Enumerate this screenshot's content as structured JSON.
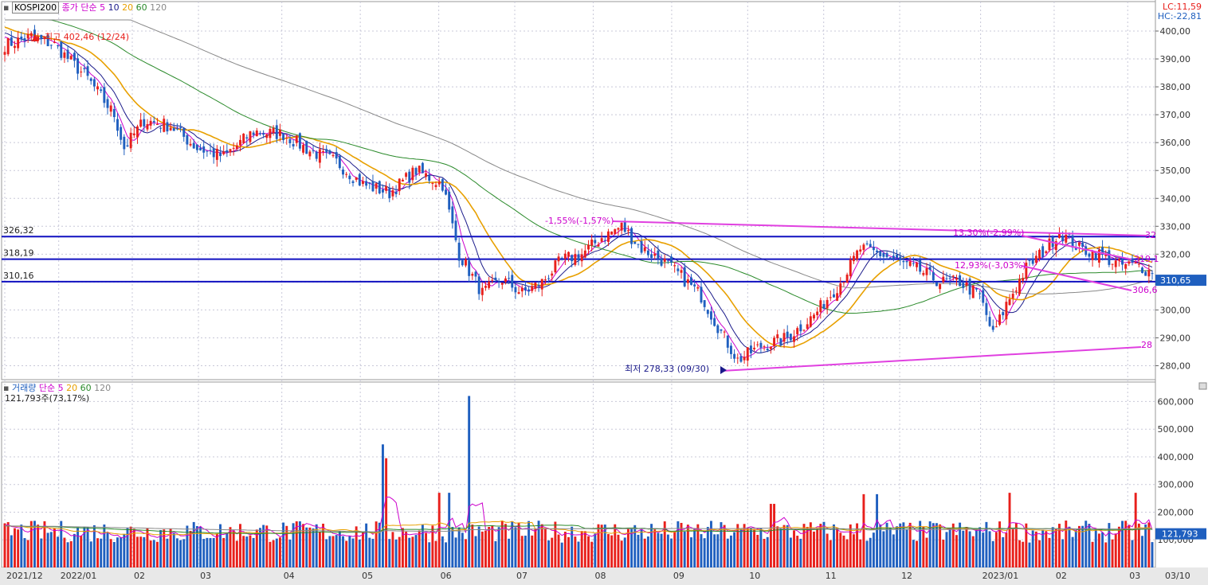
{
  "header": {
    "symbol": "KOSPI200",
    "indicator_label": "종가 단순",
    "ma_periods": [
      "5",
      "10",
      "20",
      "60",
      "120"
    ],
    "lc": "LC:11,59",
    "hc": "HC:-22,81"
  },
  "volume_header": {
    "label": "거래량",
    "indicator_label": "단순",
    "ma_periods": [
      "5",
      "20",
      "60",
      "120"
    ],
    "value_text": "121,793주(73,17%)"
  },
  "colors": {
    "up": "#e8201c",
    "down": "#1f5fbf",
    "ma5": "#cc00cc",
    "ma10": "#1a1a8a",
    "ma20": "#e8a000",
    "ma60": "#2a8a2a",
    "ma120": "#888888",
    "hline": "#1010c0",
    "trend": "#e040e0",
    "grid": "#c8c8d8"
  },
  "chart_data": {
    "type": "candlestick",
    "price_axis": {
      "min": 275,
      "max": 405,
      "ticks": [
        "400,00",
        "390,00",
        "380,00",
        "370,00",
        "360,00",
        "350,00",
        "340,00",
        "330,00",
        "320,00",
        "310,00",
        "300,00",
        "290,00",
        "280,00"
      ]
    },
    "volume_axis": {
      "min": 0,
      "max": 650000,
      "ticks": [
        "600,000",
        "500,000",
        "400,000",
        "300,000",
        "200,000",
        "100,000"
      ]
    },
    "x_labels": [
      "2021/12",
      "2022/01",
      "02",
      "03",
      "04",
      "05",
      "06",
      "07",
      "08",
      "09",
      "10",
      "11",
      "12",
      "2023/01",
      "02",
      "03",
      "03/10"
    ],
    "close_anchors": [
      [
        0,
        395
      ],
      [
        8,
        398
      ],
      [
        15,
        395
      ],
      [
        25,
        383
      ],
      [
        33,
        370
      ],
      [
        36,
        358
      ],
      [
        42,
        368
      ],
      [
        50,
        366
      ],
      [
        58,
        358
      ],
      [
        66,
        355
      ],
      [
        75,
        364
      ],
      [
        84,
        363
      ],
      [
        92,
        357
      ],
      [
        100,
        353
      ],
      [
        108,
        345
      ],
      [
        116,
        342
      ],
      [
        124,
        350
      ],
      [
        132,
        345
      ],
      [
        137,
        320
      ],
      [
        144,
        306
      ],
      [
        150,
        311
      ],
      [
        156,
        306
      ],
      [
        162,
        310
      ],
      [
        168,
        318
      ],
      [
        174,
        320
      ],
      [
        180,
        326
      ],
      [
        186,
        330
      ],
      [
        192,
        322
      ],
      [
        198,
        318
      ],
      [
        204,
        312
      ],
      [
        210,
        305
      ],
      [
        216,
        292
      ],
      [
        221,
        282
      ],
      [
        228,
        287
      ],
      [
        236,
        290
      ],
      [
        244,
        298
      ],
      [
        252,
        310
      ],
      [
        258,
        322
      ],
      [
        264,
        320
      ],
      [
        270,
        317
      ],
      [
        276,
        314
      ],
      [
        282,
        310
      ],
      [
        288,
        310
      ],
      [
        294,
        305
      ],
      [
        298,
        291
      ],
      [
        302,
        302
      ],
      [
        308,
        315
      ],
      [
        314,
        322
      ],
      [
        318,
        328
      ],
      [
        324,
        322
      ],
      [
        330,
        320
      ],
      [
        336,
        316
      ],
      [
        342,
        316
      ],
      [
        346,
        313
      ]
    ],
    "h_levels": [
      {
        "label": "326,32",
        "value": 326.32
      },
      {
        "label": "318,19",
        "value": 318.19
      },
      {
        "label": "310,16",
        "value": 310.16
      }
    ],
    "current_price_label": "310,65",
    "volume_current_label": "121,793",
    "annotations": {
      "high": "최고 402,46 (12/24)",
      "low": "최저 278,33 (09/30)",
      "pct1": "-1,55%(-1,57%)",
      "pct2": "13,30%(-2,99%)",
      "pct3": "12,93%(-3,03%)",
      "trend_r1": "32",
      "trend_r2": "319,1",
      "trend_r3": "306,6",
      "trend_r4": "28"
    }
  }
}
